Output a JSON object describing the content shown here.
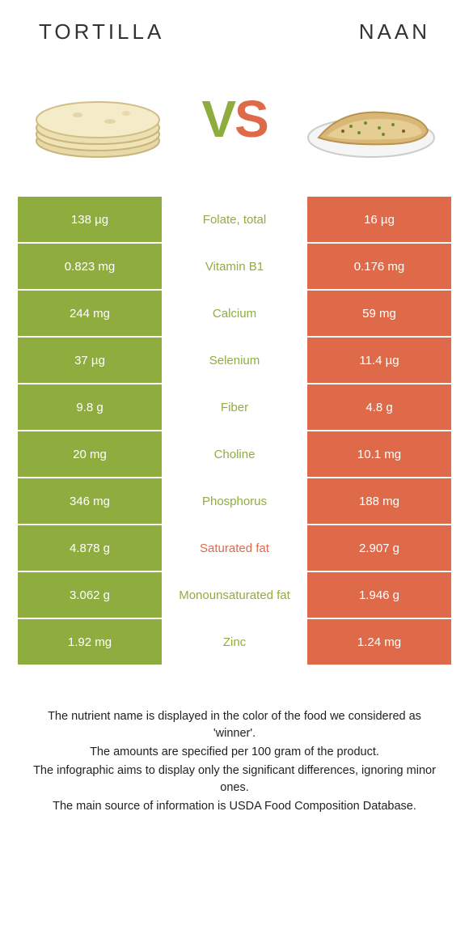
{
  "header": {
    "left": "TORTILLA",
    "right": "NAAN"
  },
  "vs": {
    "v": "V",
    "s": "S"
  },
  "colors": {
    "green": "#8fad3f",
    "orange": "#de6a4a",
    "white": "#ffffff"
  },
  "rows": [
    {
      "left": "138 µg",
      "mid": "Folate, total",
      "winner": "green",
      "right": "16 µg"
    },
    {
      "left": "0.823 mg",
      "mid": "Vitamin B1",
      "winner": "green",
      "right": "0.176 mg"
    },
    {
      "left": "244 mg",
      "mid": "Calcium",
      "winner": "green",
      "right": "59 mg"
    },
    {
      "left": "37 µg",
      "mid": "Selenium",
      "winner": "green",
      "right": "11.4 µg"
    },
    {
      "left": "9.8 g",
      "mid": "Fiber",
      "winner": "green",
      "right": "4.8 g"
    },
    {
      "left": "20 mg",
      "mid": "Choline",
      "winner": "green",
      "right": "10.1 mg"
    },
    {
      "left": "346 mg",
      "mid": "Phosphorus",
      "winner": "green",
      "right": "188 mg"
    },
    {
      "left": "4.878 g",
      "mid": "Saturated fat",
      "winner": "orange",
      "right": "2.907 g"
    },
    {
      "left": "3.062 g",
      "mid": "Monounsaturated fat",
      "winner": "green",
      "right": "1.946 g"
    },
    {
      "left": "1.92 mg",
      "mid": "Zinc",
      "winner": "green",
      "right": "1.24 mg"
    }
  ],
  "footer": {
    "l1": "The nutrient name is displayed in the color of the food we considered as 'winner'.",
    "l2": "The amounts are specified per 100 gram of the product.",
    "l3": "The infographic aims to display only the significant differences, ignoring minor ones.",
    "l4": "The main source of information is USDA Food Composition Database."
  }
}
